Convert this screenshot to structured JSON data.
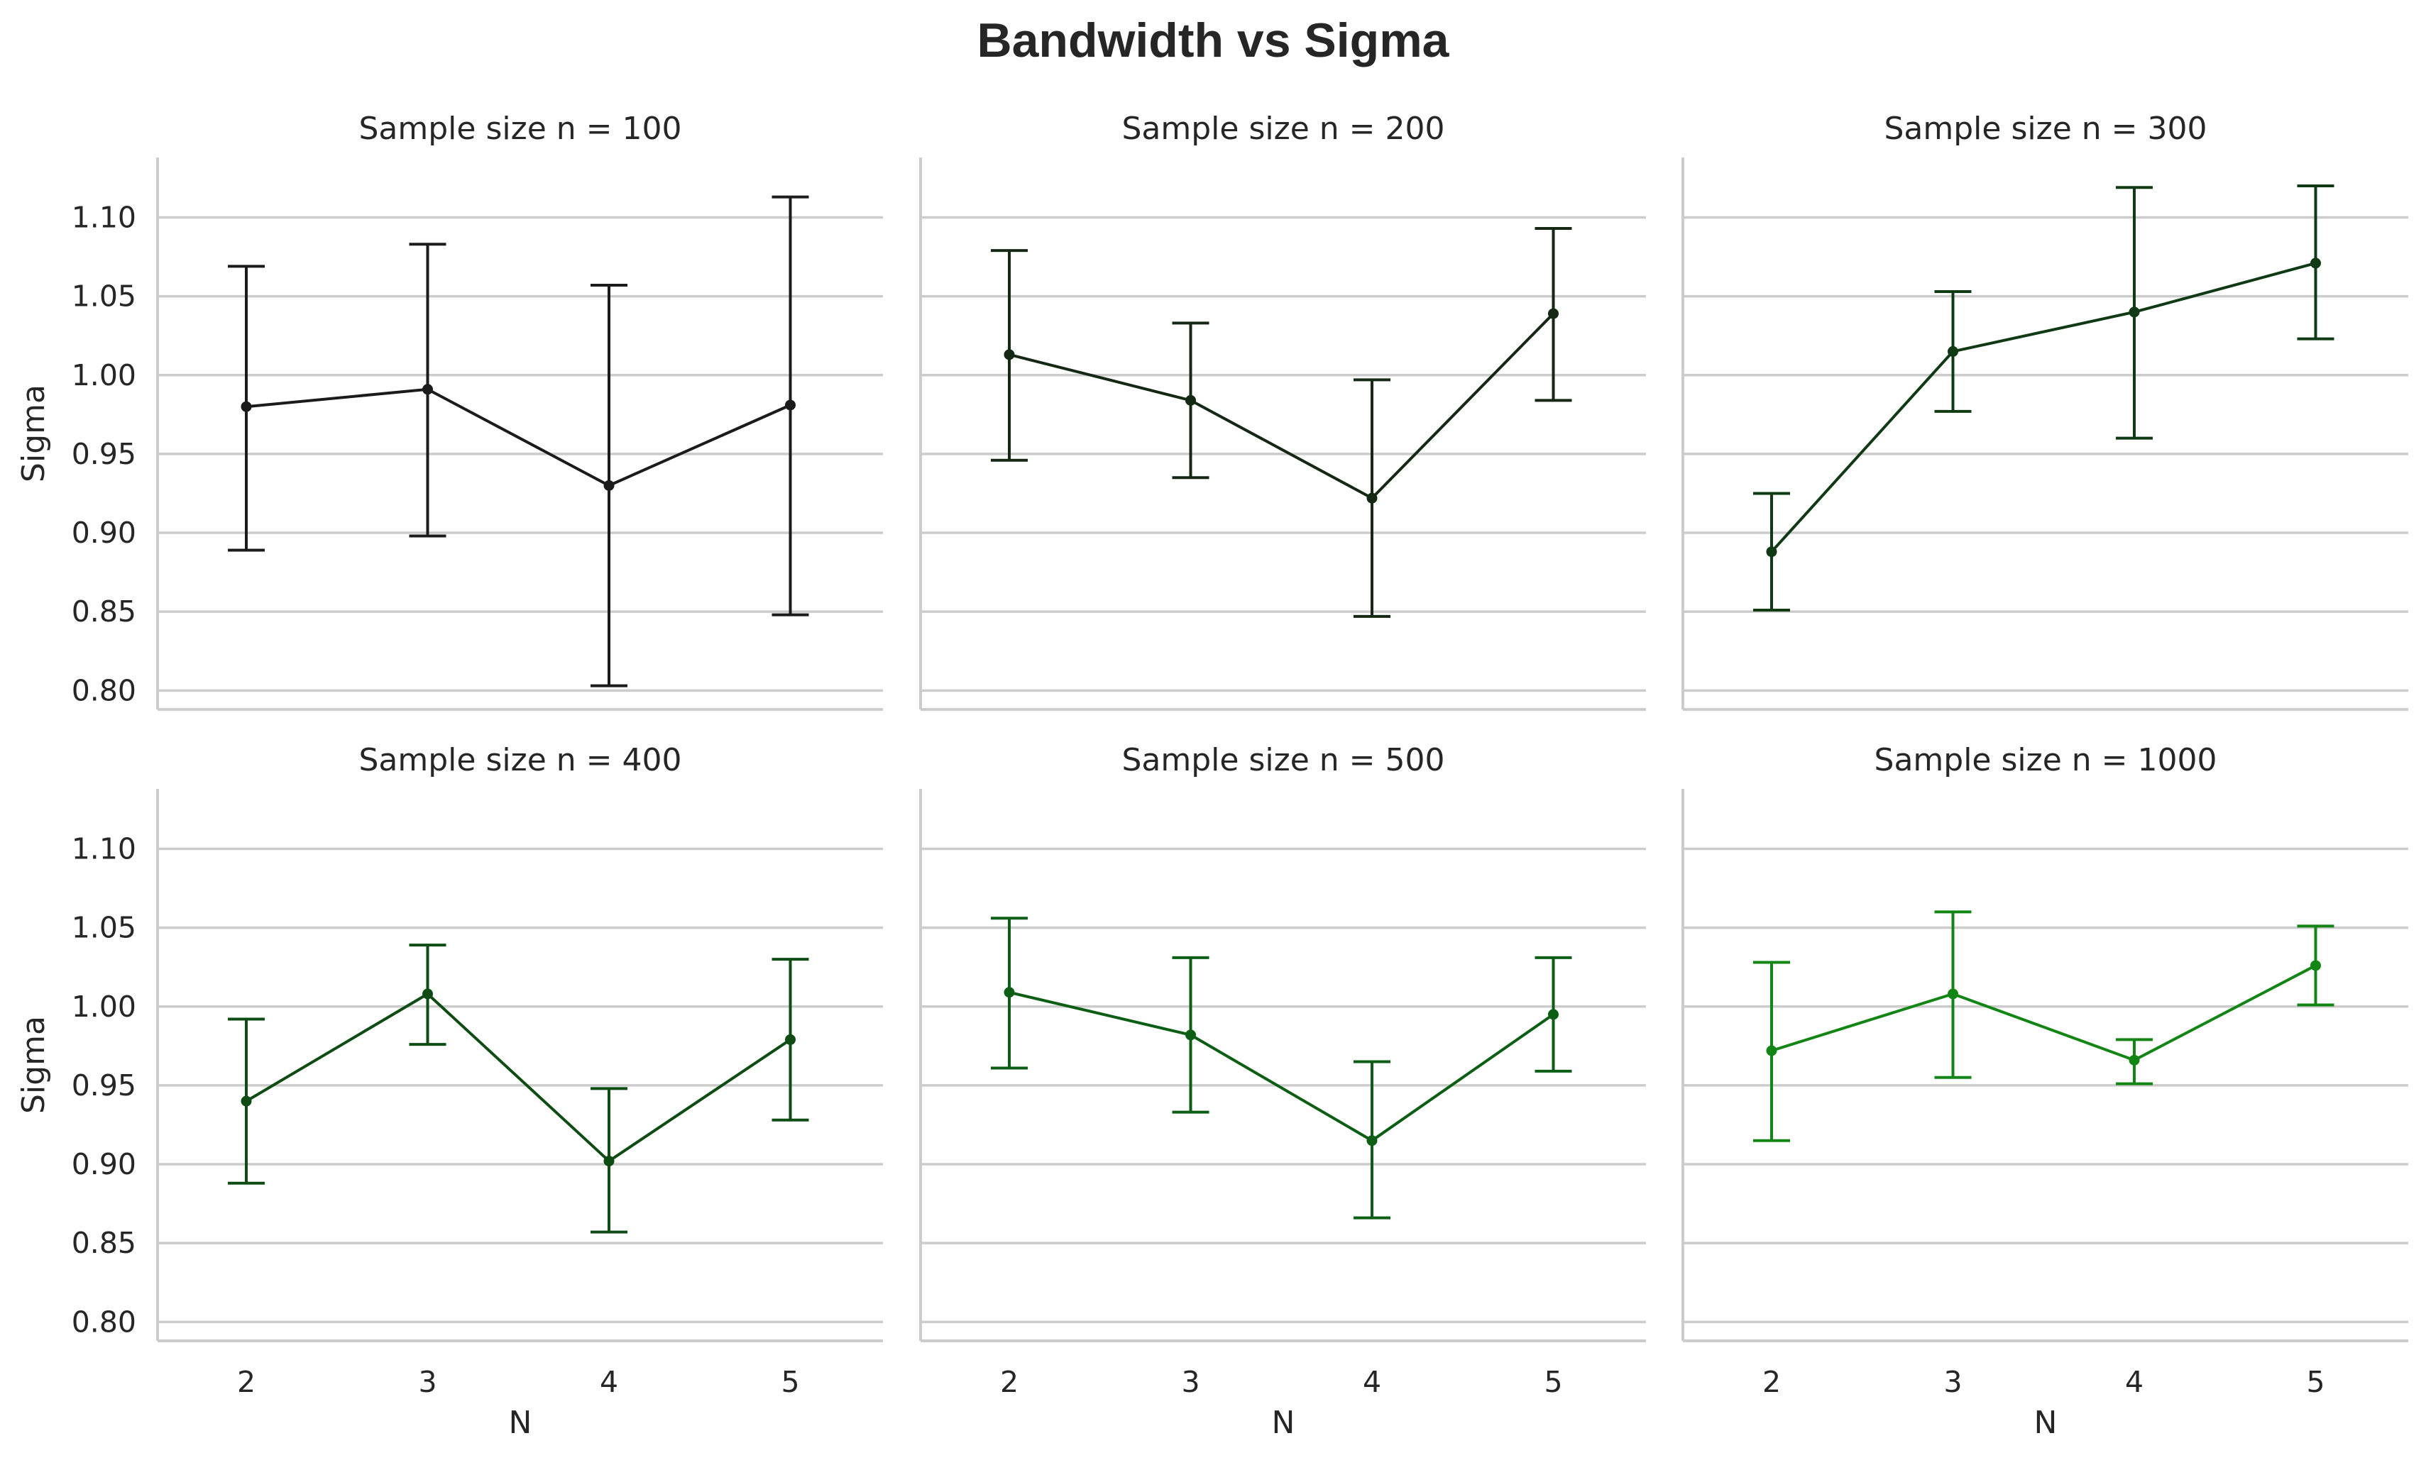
{
  "chart_data": {
    "type": "line",
    "title": "Bandwidth vs Sigma",
    "xlabel": "N",
    "ylabel": "Sigma",
    "x": [
      2,
      3,
      4,
      5
    ],
    "ylim": [
      0.788,
      1.138
    ],
    "yticks": [
      "0.80",
      "0.85",
      "0.90",
      "0.95",
      "1.00",
      "1.05",
      "1.10"
    ],
    "grid": "horizontal",
    "panels": [
      {
        "title": "Sample size n = 100",
        "color": "#1b1b1b",
        "values": [
          0.98,
          0.991,
          0.93,
          0.981
        ],
        "lower": [
          0.889,
          0.898,
          0.803,
          0.848
        ],
        "upper": [
          1.069,
          1.083,
          1.057,
          1.113
        ]
      },
      {
        "title": "Sample size n = 200",
        "color": "#142814",
        "values": [
          1.013,
          0.984,
          0.922,
          1.039
        ],
        "lower": [
          0.946,
          0.935,
          0.847,
          0.984
        ],
        "upper": [
          1.079,
          1.033,
          0.997,
          1.093
        ]
      },
      {
        "title": "Sample size n = 300",
        "color": "#0f3a14",
        "values": [
          0.888,
          1.015,
          1.04,
          1.071
        ],
        "lower": [
          0.851,
          0.977,
          0.96,
          1.023
        ],
        "upper": [
          0.925,
          1.053,
          1.119,
          1.12
        ]
      },
      {
        "title": "Sample size n = 400",
        "color": "#0e4c14",
        "values": [
          0.94,
          1.008,
          0.902,
          0.979
        ],
        "lower": [
          0.888,
          0.976,
          0.857,
          0.928
        ],
        "upper": [
          0.992,
          1.039,
          0.948,
          1.03
        ]
      },
      {
        "title": "Sample size n = 500",
        "color": "#0c5e14",
        "values": [
          1.009,
          0.982,
          0.915,
          0.995
        ],
        "lower": [
          0.961,
          0.933,
          0.866,
          0.959
        ],
        "upper": [
          1.056,
          1.031,
          0.965,
          1.031
        ]
      },
      {
        "title": "Sample size n = 1000",
        "color": "#138515",
        "values": [
          0.972,
          1.008,
          0.966,
          1.026
        ],
        "lower": [
          0.915,
          0.955,
          0.951,
          1.001
        ],
        "upper": [
          1.028,
          1.06,
          0.979,
          1.051
        ]
      }
    ]
  }
}
